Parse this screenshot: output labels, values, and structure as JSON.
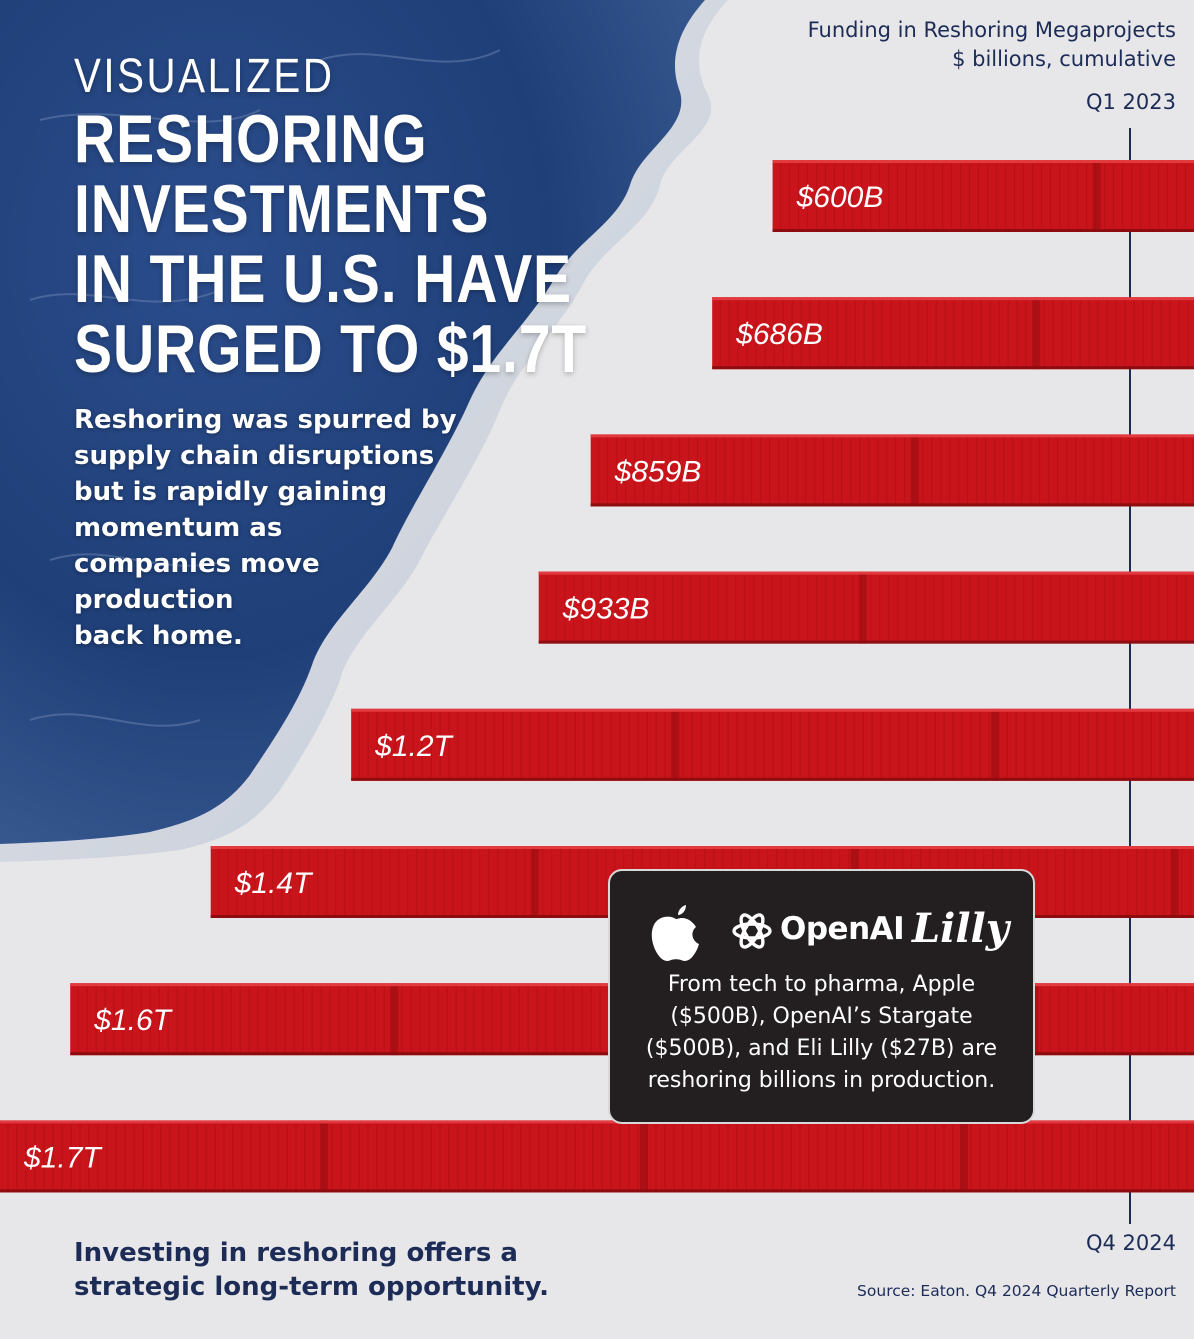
{
  "header": {
    "kicker": "VISUALIZED",
    "title_lines": [
      "RESHORING",
      "INVESTMENTS",
      "IN THE U.S. HAVE",
      "SURGED TO $1.7T"
    ]
  },
  "subtitle_lines": [
    "Reshoring was spurred by",
    "supply chain disruptions",
    "but is rapidly gaining",
    "momentum as",
    "companies move",
    "production",
    "back home."
  ],
  "chart_data": {
    "type": "bar",
    "orientation": "horizontal",
    "title": "Funding in Reshoring  Megaprojects",
    "subtitle": "$ billions, cumulative",
    "start_label": "Q1 2023",
    "end_label": "Q4 2024",
    "unit": "$ billions",
    "values": [
      600,
      686,
      859,
      933,
      1200,
      1400,
      1600,
      1700
    ],
    "value_labels": [
      "$600B",
      "$686B",
      "$859B",
      "$933B",
      "$1.2T",
      "$1.4T",
      "$1.6T",
      "$1.7T"
    ]
  },
  "callout": {
    "logos": [
      "apple-logo",
      "openai-logo",
      "lilly-logo"
    ],
    "openai_text": "OpenAI",
    "lilly_text": "Lilly",
    "text_lines": [
      "From tech to pharma, Apple",
      "($500B), OpenAI’s Stargate",
      "($500B), and Eli Lilly ($27B) are",
      "reshoring billions in production."
    ]
  },
  "footer": {
    "text_lines": [
      "Investing in reshoring offers a",
      "strategic long-term opportunity."
    ],
    "source": "Source: Eaton. Q4 2024 Quarterly Report"
  },
  "colors": {
    "background": "#e7e7e9",
    "bar": "#c8141a",
    "ocean": "#1f3f78",
    "navy_text": "#1c2c57",
    "callout_bg": "#231f20"
  }
}
